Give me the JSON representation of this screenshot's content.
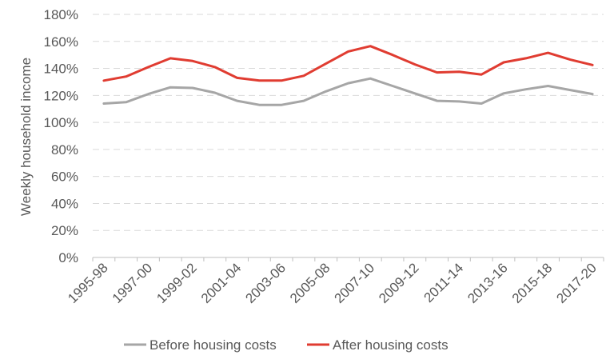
{
  "chart_data": {
    "type": "line",
    "title": "",
    "xlabel": "",
    "ylabel": "Weekly household income",
    "ylim": [
      0,
      180
    ],
    "yticks": [
      "0%",
      "20%",
      "40%",
      "60%",
      "80%",
      "100%",
      "120%",
      "140%",
      "160%",
      "180%"
    ],
    "grid": true,
    "legend_position": "bottom",
    "x": [
      "1995-98",
      "1996-99",
      "1997-00",
      "1998-01",
      "1999-02",
      "2000-03",
      "2001-04",
      "2002-05",
      "2003-06",
      "2004-07",
      "2005-08",
      "2006-09",
      "2007-10",
      "2008-11",
      "2009-12",
      "2010-13",
      "2011-14",
      "2012-15",
      "2013-16",
      "2014-17",
      "2015-18",
      "2016-19",
      "2017-20"
    ],
    "x_tick_labels": [
      "1995-98",
      "1997-00",
      "1999-02",
      "2001-04",
      "2003-06",
      "2005-08",
      "2007-10",
      "2009-12",
      "2011-14",
      "2013-16",
      "2015-18",
      "2017-20"
    ],
    "series": [
      {
        "name": "Before housing costs",
        "color": "#a6a6a6",
        "values": [
          114,
          115,
          121,
          126,
          125.5,
          122,
          116,
          113,
          113,
          116,
          123,
          129,
          132.5,
          127,
          121.5,
          116,
          115.5,
          114,
          121.5,
          124.5,
          127,
          124,
          121
        ]
      },
      {
        "name": "After housing costs",
        "color": "#e03c31",
        "values": [
          131,
          134,
          141,
          147.5,
          145.5,
          141,
          133,
          131,
          131,
          134.5,
          143.5,
          152.5,
          156.5,
          150,
          143,
          137,
          137.5,
          135.5,
          144.5,
          147.5,
          151.5,
          146.5,
          142.5
        ]
      }
    ]
  }
}
